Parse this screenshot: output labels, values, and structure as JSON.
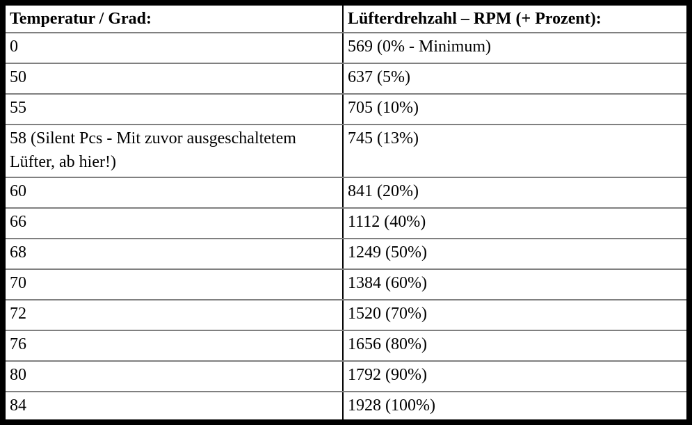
{
  "table": {
    "columns": [
      {
        "label": "Temperatur / Grad:"
      },
      {
        "label": "Lüfterdrehzahl – RPM (+ Prozent):"
      }
    ],
    "rows": [
      {
        "temp": "0",
        "rpm": "569 (0% - Minimum)"
      },
      {
        "temp": "50",
        "rpm": "637 (5%)"
      },
      {
        "temp": "55",
        "rpm": "705 (10%)"
      },
      {
        "temp": "58 (Silent Pcs - Mit zuvor ausgeschaltetem Lüfter, ab hier!)",
        "rpm": "745 (13%)"
      },
      {
        "temp": "60",
        "rpm": "841 (20%)"
      },
      {
        "temp": "66",
        "rpm": "1112 (40%)"
      },
      {
        "temp": "68",
        "rpm": "1249 (50%)"
      },
      {
        "temp": "70",
        "rpm": "1384 (60%)"
      },
      {
        "temp": "72",
        "rpm": "1520 (70%)"
      },
      {
        "temp": "76",
        "rpm": "1656 (80%)"
      },
      {
        "temp": "80",
        "rpm": "1792 (90%)"
      },
      {
        "temp": "84",
        "rpm": "1928 (100%)"
      }
    ],
    "colors": {
      "outer_border": "#000000",
      "row_separator": "#808080",
      "column_separator": "#000000",
      "text": "#000000",
      "background": "#ffffff"
    }
  }
}
